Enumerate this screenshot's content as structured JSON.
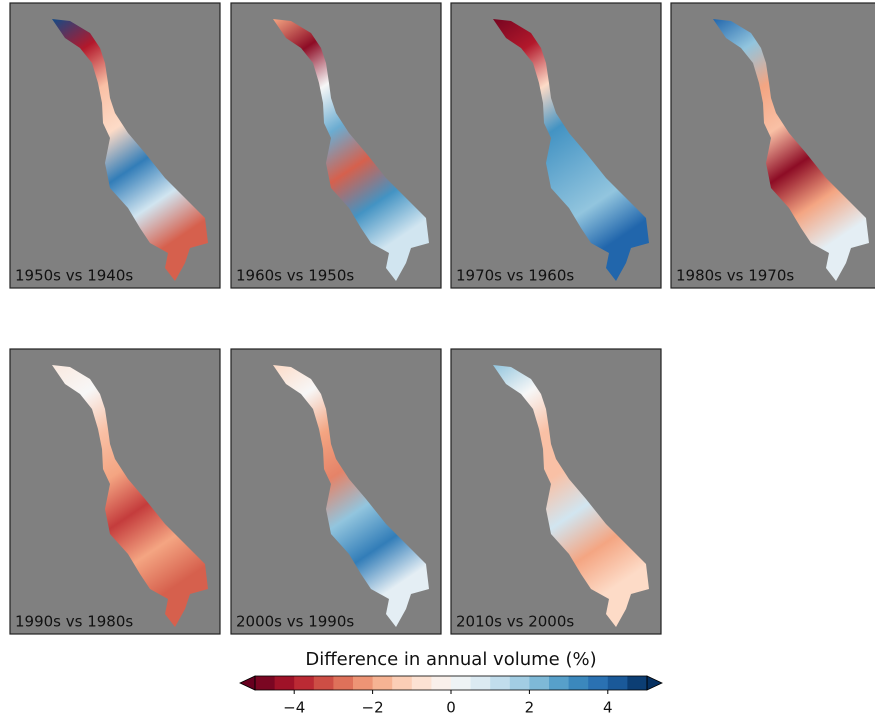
{
  "panels": [
    {
      "label": "1950s vs 1940s"
    },
    {
      "label": "1960s vs 1950s"
    },
    {
      "label": "1970s vs 1960s"
    },
    {
      "label": "1980s vs 1970s"
    },
    {
      "label": "1990s vs 1980s"
    },
    {
      "label": "2000s vs 1990s"
    },
    {
      "label": "2010s vs 2000s"
    }
  ],
  "colorbar": {
    "label": "Difference in annual volume (%)",
    "lim": [
      -5,
      5
    ],
    "ticks": [
      {
        "value": -4,
        "label": "−4"
      },
      {
        "value": -2,
        "label": "−2"
      },
      0,
      2,
      4
    ]
  }
}
